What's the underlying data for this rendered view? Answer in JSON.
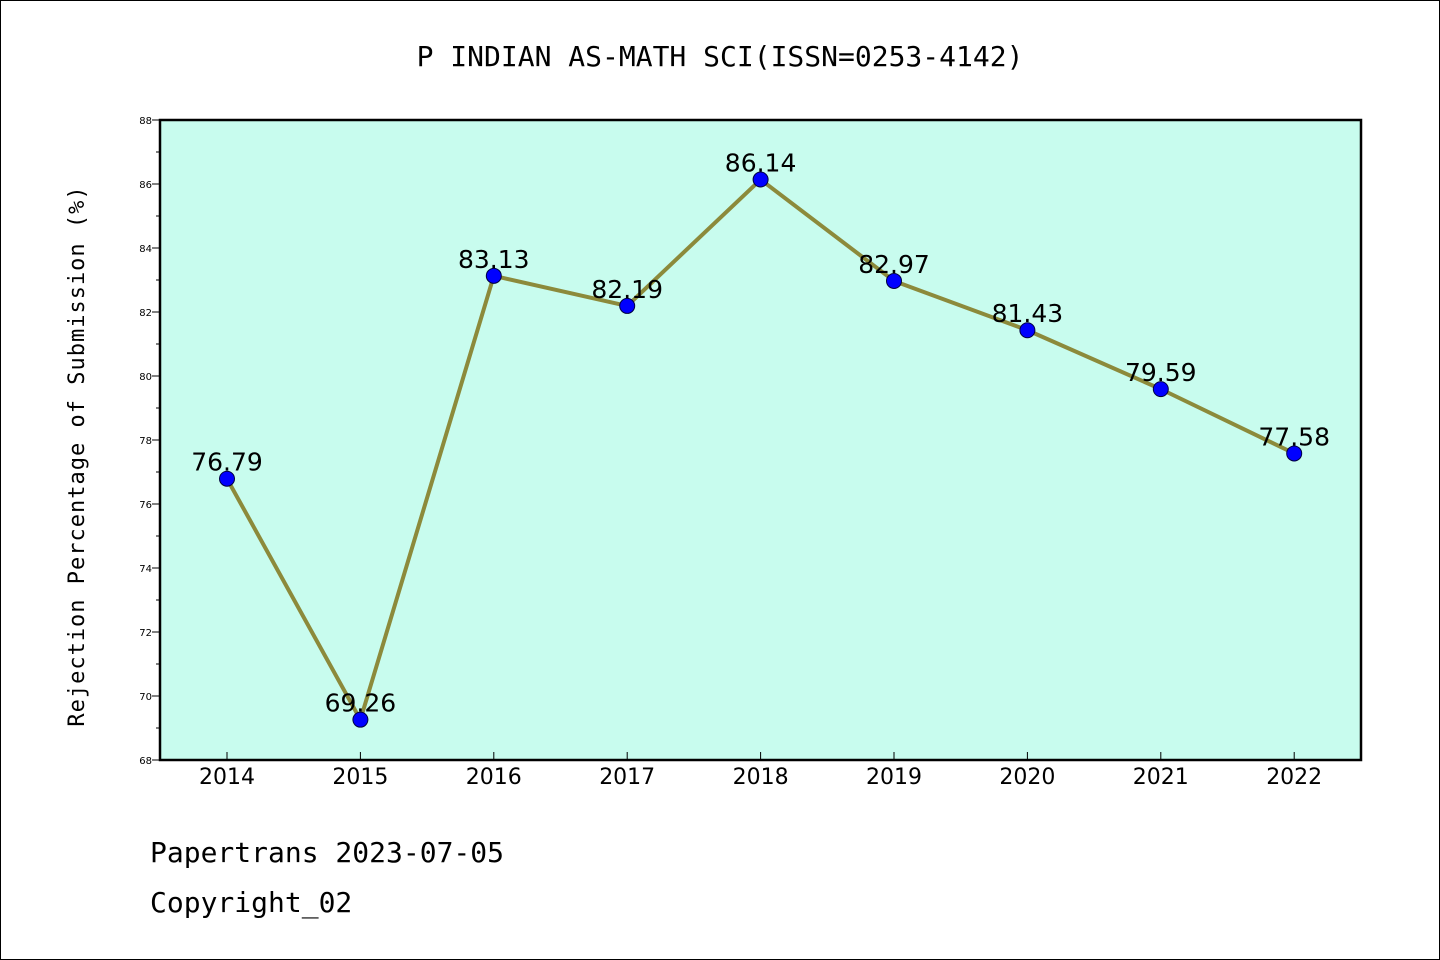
{
  "colors": {
    "plot_background": "#c8fcee",
    "line": "#8c8a3b",
    "marker": "#0000ff",
    "frame": "#000000"
  },
  "chart_data": {
    "type": "line",
    "title": "P INDIAN AS-MATH SCI(ISSN=0253-4142)",
    "xlabel": "",
    "ylabel": "Rejection Percentage of Submission (%)",
    "categories": [
      "2014",
      "2015",
      "2016",
      "2017",
      "2018",
      "2019",
      "2020",
      "2021",
      "2022"
    ],
    "values": [
      76.79,
      69.26,
      83.13,
      82.19,
      86.14,
      82.97,
      81.43,
      79.59,
      77.58
    ],
    "data_labels": [
      "76.79",
      "69.26",
      "83.13",
      "82.19",
      "86.14",
      "82.97",
      "81.43",
      "79.59",
      "77.58"
    ],
    "ylim": [
      68,
      88
    ],
    "yticks": [
      68,
      70,
      72,
      74,
      76,
      78,
      80,
      82,
      84,
      86,
      88
    ],
    "grid": false,
    "legend": "none"
  },
  "footer": {
    "line1": "Papertrans 2023-07-05",
    "line2": "Copyright_02"
  }
}
